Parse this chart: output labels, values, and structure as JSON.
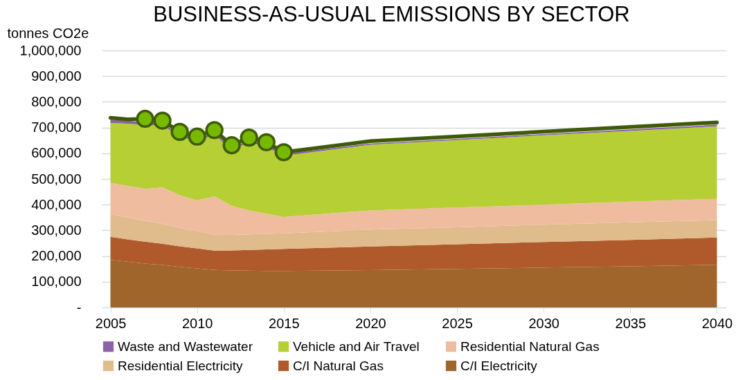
{
  "chart_data": {
    "type": "area",
    "title": "BUSINESS-AS-USUAL EMISSIONS BY SECTOR",
    "ylabel": "tonnes CO2e",
    "stacked": true,
    "x": [
      2005,
      2006,
      2007,
      2008,
      2009,
      2010,
      2011,
      2012,
      2013,
      2014,
      2015,
      2020,
      2025,
      2030,
      2035,
      2040
    ],
    "series": [
      {
        "name": "C/I Electricity",
        "color": "#a0652a",
        "values": [
          185000,
          178000,
          171000,
          165000,
          158000,
          152000,
          146000,
          144000,
          143000,
          142000,
          142000,
          145000,
          150000,
          155000,
          160000,
          166000
        ]
      },
      {
        "name": "C/I Natural Gas",
        "color": "#b05a2c",
        "values": [
          90000,
          87000,
          85000,
          83000,
          80000,
          78000,
          75000,
          78000,
          81000,
          84000,
          86000,
          92000,
          96000,
          100000,
          103000,
          106000
        ]
      },
      {
        "name": "Residential Electricity",
        "color": "#e0bb8c",
        "values": [
          88000,
          85000,
          81000,
          77000,
          72000,
          67000,
          62000,
          60000,
          60000,
          60000,
          60000,
          66000,
          66000,
          67000,
          68000,
          68000
        ]
      },
      {
        "name": "Residential Natural Gas",
        "color": "#f0bca0",
        "values": [
          121000,
          123000,
          125000,
          142000,
          127000,
          120000,
          150000,
          113000,
          94000,
          79000,
          64000,
          75000,
          77000,
          78000,
          81000,
          83000
        ]
      },
      {
        "name": "Vehicle and Air Travel",
        "color": "#b5cf35",
        "values": [
          234000,
          242000,
          248000,
          242000,
          228000,
          230000,
          239000,
          218000,
          265000,
          260000,
          238000,
          255000,
          262000,
          270000,
          275000,
          282000
        ]
      },
      {
        "name": "Waste and Wastewater",
        "color": "#8c62a8",
        "values": [
          13000,
          12000,
          10000,
          8000,
          8000,
          8000,
          8000,
          8000,
          8000,
          8000,
          8000,
          5000,
          5000,
          5000,
          6000,
          6000
        ]
      },
      {
        "type": "line",
        "color": "#3e5c08",
        "values": [
          738000,
          732000,
          734000,
          727000,
          683000,
          665000,
          690000,
          631000,
          661000,
          643000,
          604000,
          647000,
          665000,
          684000,
          702000,
          720000
        ]
      },
      {
        "type": "scatter",
        "marker": "circle",
        "color": "#76b900",
        "x": [
          2007,
          2008,
          2009,
          2010,
          2011,
          2012,
          2013,
          2014,
          2015
        ],
        "values": [
          734000,
          727000,
          683000,
          665000,
          690000,
          631000,
          661000,
          643000,
          604000
        ]
      }
    ],
    "xlim": [
      2004.5,
      2040.5
    ],
    "xticks": [
      2005,
      2010,
      2015,
      2020,
      2025,
      2030,
      2035,
      2040
    ],
    "ylim": [
      0,
      1000000
    ],
    "yticks": [
      {
        "value": 0,
        "label": "-"
      },
      {
        "value": 100000,
        "label": "100,000"
      },
      {
        "value": 200000,
        "label": "200,000"
      },
      {
        "value": 300000,
        "label": "300,000"
      },
      {
        "value": 400000,
        "label": "400,000"
      },
      {
        "value": 500000,
        "label": "500,000"
      },
      {
        "value": 600000,
        "label": "600,000"
      },
      {
        "value": 700000,
        "label": "700,000"
      },
      {
        "value": 800000,
        "label": "800,000"
      },
      {
        "value": 900000,
        "label": "900,000"
      },
      {
        "value": 1000000,
        "label": "1,000,000"
      }
    ],
    "grid": "y",
    "legend": "bottom"
  }
}
